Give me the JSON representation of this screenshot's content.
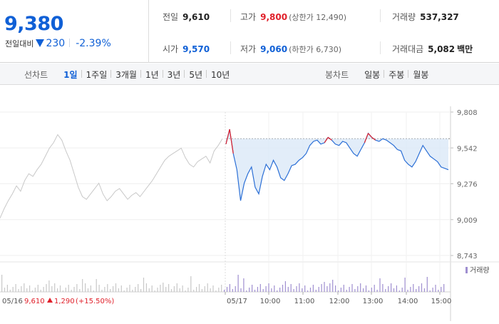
{
  "header": {
    "price": "9,380",
    "change_label": "전일대비",
    "change_value": "230",
    "change_pct": "-2.39%"
  },
  "stats": {
    "prev_close": {
      "label": "전일",
      "value": "9,610"
    },
    "high": {
      "label": "고가",
      "value": "9,800",
      "extra": "(상한가 12,490)"
    },
    "volume": {
      "label": "거래량",
      "value": "537,327"
    },
    "open": {
      "label": "시가",
      "value": "9,570"
    },
    "low": {
      "label": "저가",
      "value": "9,060",
      "extra": "(하한가 6,730)"
    },
    "trade_value": {
      "label": "거래대금",
      "value": "5,082",
      "unit": "백만"
    }
  },
  "line_tabs": {
    "label": "선차트",
    "items": [
      "1일",
      "1주일",
      "3개월",
      "1년",
      "3년",
      "5년",
      "10년"
    ],
    "active": 0
  },
  "candle_tabs": {
    "label": "봉차트",
    "items": [
      "일봉",
      "주봉",
      "월봉"
    ]
  },
  "chart_data": {
    "type": "line",
    "y_ticks": [
      "9,808",
      "9,542",
      "9,276",
      "9,009",
      "8,743"
    ],
    "ylim": [
      8743,
      9808
    ],
    "x_ticks": [
      "05/17",
      "10:00",
      "11:00",
      "12:00",
      "13:00",
      "14:00",
      "15:00"
    ],
    "prev_day_label": "05/16",
    "prev_day_close": "9,610",
    "prev_day_change": "1,290",
    "prev_day_change_pct": "(+15.50%)",
    "reference_price": 9610,
    "volume_legend": "거래량",
    "colors": {
      "line": "#2b6fd6",
      "fill": "#dbe8f7",
      "prev_line": "#c8c8c8",
      "up": "#e0202a",
      "down": "#2b6fd6",
      "volume": "#9f8fd0"
    },
    "series": [
      {
        "name": "05/16",
        "values": [
          9020,
          9090,
          9150,
          9200,
          9260,
          9220,
          9300,
          9350,
          9330,
          9380,
          9420,
          9480,
          9540,
          9580,
          9640,
          9600,
          9520,
          9450,
          9350,
          9250,
          9180,
          9160,
          9200,
          9240,
          9280,
          9200,
          9150,
          9180,
          9220,
          9240,
          9200,
          9160,
          9190,
          9210,
          9180,
          9220,
          9260,
          9300,
          9350,
          9400,
          9450,
          9480,
          9500,
          9520,
          9540,
          9470,
          9420,
          9400,
          9440,
          9460,
          9480,
          9430,
          9520,
          9560,
          9610
        ]
      },
      {
        "name": "05/17",
        "values": [
          9570,
          9680,
          9500,
          9380,
          9150,
          9280,
          9350,
          9400,
          9250,
          9200,
          9330,
          9420,
          9380,
          9450,
          9400,
          9320,
          9300,
          9350,
          9410,
          9420,
          9450,
          9470,
          9500,
          9560,
          9590,
          9600,
          9570,
          9580,
          9620,
          9600,
          9570,
          9560,
          9590,
          9580,
          9540,
          9500,
          9480,
          9530,
          9580,
          9650,
          9620,
          9600,
          9590,
          9610,
          9600,
          9580,
          9560,
          9530,
          9520,
          9450,
          9420,
          9400,
          9440,
          9500,
          9560,
          9520,
          9480,
          9460,
          9440,
          9400,
          9390,
          9380
        ]
      }
    ]
  }
}
